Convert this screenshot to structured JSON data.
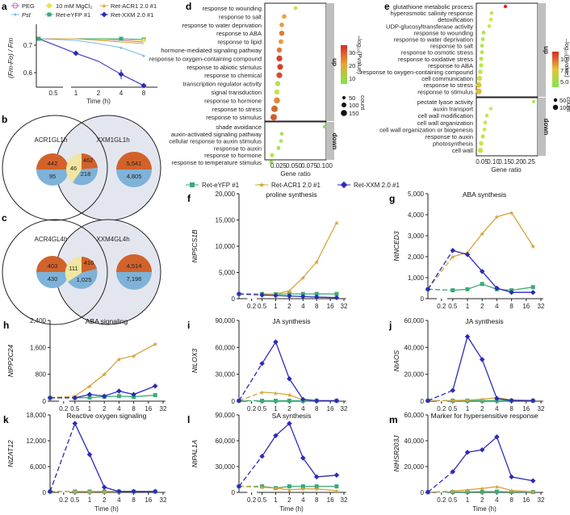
{
  "colors": {
    "eyfp": "#3aaa78",
    "acr": "#d4a43c",
    "xxm": "#2e2ab8",
    "peg": "#cc66cc",
    "pst": "#7ab8e6",
    "mgcl": "#e6e64a",
    "venn_orange": "#d2622a",
    "venn_blue": "#7eb2d8",
    "venn_fill": "#e4e6ef"
  },
  "panel_a": {
    "label": "a",
    "legend": [
      "PEG",
      "10 mM MgCl₂",
      "Ret-ACR1 2.0 #1",
      "Pst",
      "Ret-eYFP #1",
      "Ret-XXM 2.0 #1"
    ],
    "ylabel": "(Fm-Fo) / Fm",
    "xlabel": "Time (h)",
    "yticks": [
      "0.7",
      "0.6"
    ],
    "xticks": [
      "0.5",
      "1",
      "2",
      "4",
      "8"
    ]
  },
  "panel_b": {
    "label": "b",
    "left_title": "ACR1GL1h",
    "right_title": "XXM1GL1h",
    "left": {
      "up": "442",
      "down": "95"
    },
    "overlap": {
      "a": "46",
      "b": "462",
      "c": "218"
    },
    "right": {
      "up": "5,541",
      "down": "4,805"
    }
  },
  "panel_c": {
    "label": "c",
    "left_title": "ACR4GL4h",
    "right_title": "XXM4GL4h",
    "left": {
      "up": "403",
      "down": "430"
    },
    "overlap": {
      "a": "111",
      "b": "416",
      "c": "1,025"
    },
    "right": {
      "up": "4,514",
      "down": "7,196"
    }
  },
  "panel_d": {
    "label": "d",
    "up_terms": [
      "response to wounding",
      "response to salt",
      "response to water deprivation",
      "response to ABA",
      "response to lipid",
      "hormone-mediated signaling pathway",
      "response to oxygen-containing compound",
      "response to abiotic stimulus",
      "response to chemical",
      "transcription regulator activity",
      "signal transduction",
      "response to hormone",
      "response to stress",
      "response to stimulus"
    ],
    "down_terms": [
      "shade avoidance",
      "auxin-activated signaling pathway",
      "cellular response to auxin stimulus",
      "response to auxin",
      "response to hormone",
      "response to temperature stimulus"
    ],
    "xticks": [
      "0.025",
      "0.050",
      "0.075",
      "0.100"
    ],
    "xlabel": "Gene ratio",
    "up_tag": "up",
    "down_tag": "down",
    "colorbar_title": "–log₁₀(Pvalue)",
    "colorbar_ticks": [
      "30",
      "20",
      "10"
    ],
    "size_title": "count",
    "size_ticks": [
      "50",
      "100",
      "150"
    ]
  },
  "panel_e": {
    "label": "e",
    "up_terms": [
      "glutathione metabolic process",
      "hyperosmotic salinity response",
      "detoxification",
      "UDP-glucosyltransferase activity",
      "response to wounding",
      "response to water deprivation",
      "response to salt",
      "response to osmotic stress",
      "response to oxidative stress",
      "response to ABA",
      "response to oxygen-containing compound",
      "cell communication",
      "response to stress",
      "response to stimulus"
    ],
    "down_terms": [
      "pectate lyase activity",
      "auxin transport",
      "cell wall modification",
      "cell wall organization",
      "cell wall organization or biogenesis",
      "response to auxin",
      "photosynthesis",
      "cell wall"
    ],
    "xticks": [
      "0.05",
      "0.10",
      "0.15",
      "0.20",
      "0.25"
    ],
    "xlabel": "Gene ratio",
    "up_tag": "up",
    "down_tag": "down",
    "colorbar_title": "–log₁₀(Pvalue)",
    "colorbar_ticks": [
      "10",
      "7.5",
      "5.0"
    ],
    "size_title": "count",
    "size_ticks": [
      "50",
      "100"
    ]
  },
  "legend_fg": [
    "Ret-eYFP #1",
    "Ret-ACR1 2.0 #1",
    "Ret-XXM 2.0 #1"
  ],
  "xticks_time": [
    "0.2",
    "0.5",
    "1",
    "2",
    "4",
    "8",
    "16",
    "32"
  ],
  "time_xlabel": "Time (h)",
  "chart_data": [
    {
      "id": "f",
      "type": "line",
      "label": "f",
      "title": "proline synthesis",
      "ylabel": "NtP5CS1B",
      "ylim": [
        0,
        20000
      ],
      "yticks": [
        "0",
        "5,000",
        "10,000",
        "15,000",
        "20,000"
      ],
      "x": [
        0,
        0.5,
        1,
        2,
        4,
        8,
        24
      ],
      "series": [
        {
          "name": "Ret-eYFP #1",
          "values": [
            900,
            900,
            850,
            900,
            900,
            900,
            900
          ]
        },
        {
          "name": "Ret-ACR1 2.0 #1",
          "values": [
            900,
            800,
            900,
            1500,
            4000,
            7000,
            14500
          ]
        },
        {
          "name": "Ret-XXM 2.0 #1",
          "values": [
            900,
            700,
            600,
            500,
            400,
            300,
            200
          ]
        }
      ]
    },
    {
      "id": "g",
      "type": "line",
      "label": "g",
      "title": "ABA synthesis",
      "ylabel": "NtNCED3",
      "ylim": [
        0,
        5000
      ],
      "yticks": [
        "0",
        "1,000",
        "2,000",
        "3,000",
        "4,000",
        "5,000"
      ],
      "x": [
        0,
        0.5,
        1,
        2,
        4,
        8,
        24
      ],
      "series": [
        {
          "name": "Ret-eYFP #1",
          "values": [
            450,
            400,
            450,
            700,
            450,
            400,
            550
          ]
        },
        {
          "name": "Ret-ACR1 2.0 #1",
          "values": [
            450,
            2000,
            2200,
            3100,
            3900,
            4100,
            2500
          ]
        },
        {
          "name": "Ret-XXM 2.0 #1",
          "values": [
            450,
            2300,
            2100,
            1300,
            500,
            300,
            300
          ]
        }
      ]
    },
    {
      "id": "h",
      "type": "line",
      "label": "h",
      "title": "ABA signaling",
      "ylabel": "NtPP2C24",
      "ylim": [
        0,
        2400
      ],
      "yticks": [
        "0",
        "800",
        "1,600",
        "2,400"
      ],
      "x": [
        0,
        0.5,
        1,
        2,
        4,
        8,
        24
      ],
      "series": [
        {
          "name": "Ret-eYFP #1",
          "values": [
            100,
            100,
            110,
            130,
            150,
            130,
            180
          ]
        },
        {
          "name": "Ret-ACR1 2.0 #1",
          "values": [
            100,
            150,
            450,
            800,
            1250,
            1350,
            1700
          ]
        },
        {
          "name": "Ret-XXM 2.0 #1",
          "values": [
            100,
            100,
            200,
            150,
            300,
            200,
            450
          ]
        }
      ]
    },
    {
      "id": "i",
      "type": "line",
      "label": "i",
      "title": "JA synthesis",
      "ylabel": "NtLOX3",
      "ylim": [
        0,
        90000
      ],
      "yticks": [
        "0",
        "30,000",
        "60,000",
        "90,000"
      ],
      "x": [
        0,
        0.5,
        1,
        2,
        4,
        8,
        24
      ],
      "series": [
        {
          "name": "Ret-eYFP #1",
          "values": [
            500,
            500,
            500,
            500,
            500,
            500,
            500
          ]
        },
        {
          "name": "Ret-ACR1 2.0 #1",
          "values": [
            500,
            10000,
            9000,
            7000,
            1500,
            800,
            500
          ]
        },
        {
          "name": "Ret-XXM 2.0 #1",
          "values": [
            500,
            42000,
            66000,
            25000,
            2000,
            500,
            500
          ]
        }
      ]
    },
    {
      "id": "j",
      "type": "line",
      "label": "j",
      "title": "JA synthesis",
      "ylabel": "NtAOS",
      "ylim": [
        0,
        60000
      ],
      "yticks": [
        "0",
        "20,000",
        "40,000",
        "60,000"
      ],
      "x": [
        0,
        0.5,
        1,
        2,
        4,
        8,
        24
      ],
      "series": [
        {
          "name": "Ret-eYFP #1",
          "values": [
            400,
            400,
            400,
            400,
            400,
            400,
            400
          ]
        },
        {
          "name": "Ret-ACR1 2.0 #1",
          "values": [
            400,
            500,
            800,
            1500,
            2500,
            1000,
            500
          ]
        },
        {
          "name": "Ret-XXM 2.0 #1",
          "values": [
            400,
            8000,
            48000,
            31000,
            2000,
            500,
            400
          ]
        }
      ]
    },
    {
      "id": "k",
      "type": "line",
      "label": "k",
      "title": "Reactive oxygen signaling",
      "ylabel": "NtZAT12",
      "ylim": [
        0,
        18000
      ],
      "yticks": [
        "0",
        "6,000",
        "12,000",
        "18,000"
      ],
      "x": [
        0,
        0.5,
        1,
        2,
        4,
        8,
        24
      ],
      "series": [
        {
          "name": "Ret-eYFP #1",
          "values": [
            200,
            200,
            200,
            200,
            200,
            200,
            200
          ]
        },
        {
          "name": "Ret-ACR1 2.0 #1",
          "values": [
            200,
            200,
            200,
            200,
            200,
            200,
            200
          ]
        },
        {
          "name": "Ret-XXM 2.0 #1",
          "values": [
            200,
            16000,
            8800,
            1200,
            200,
            200,
            200
          ]
        }
      ]
    },
    {
      "id": "l",
      "type": "line",
      "label": "l",
      "title": "SA synthesis",
      "ylabel": "NtPAL1A",
      "ylim": [
        0,
        90000
      ],
      "yticks": [
        "0",
        "30,000",
        "60,000",
        "90,000"
      ],
      "x": [
        0,
        0.5,
        1,
        2,
        4,
        8,
        24
      ],
      "series": [
        {
          "name": "Ret-eYFP #1",
          "values": [
            7000,
            7000,
            5000,
            7000,
            7000,
            7000,
            7000
          ]
        },
        {
          "name": "Ret-ACR1 2.0 #1",
          "values": [
            7000,
            6000,
            5000,
            3000,
            4000,
            4000,
            2000
          ]
        },
        {
          "name": "Ret-XXM 2.0 #1",
          "values": [
            7000,
            42000,
            66000,
            80000,
            40000,
            18000,
            20000
          ]
        }
      ]
    },
    {
      "id": "m",
      "type": "line",
      "label": "m",
      "title": "Marker for hypersensitive response",
      "ylabel": "NtHSR203J",
      "ylim": [
        0,
        60000
      ],
      "yticks": [
        "0",
        "20,000",
        "40,000",
        "60,000"
      ],
      "x": [
        0,
        0.5,
        1,
        2,
        4,
        8,
        24
      ],
      "series": [
        {
          "name": "Ret-eYFP #1",
          "values": [
            200,
            300,
            400,
            500,
            600,
            400,
            300
          ]
        },
        {
          "name": "Ret-ACR1 2.0 #1",
          "values": [
            200,
            1000,
            2000,
            3000,
            4500,
            1500,
            500
          ]
        },
        {
          "name": "Ret-XXM 2.0 #1",
          "values": [
            200,
            16000,
            31000,
            33000,
            43000,
            12000,
            9000
          ]
        }
      ]
    }
  ]
}
